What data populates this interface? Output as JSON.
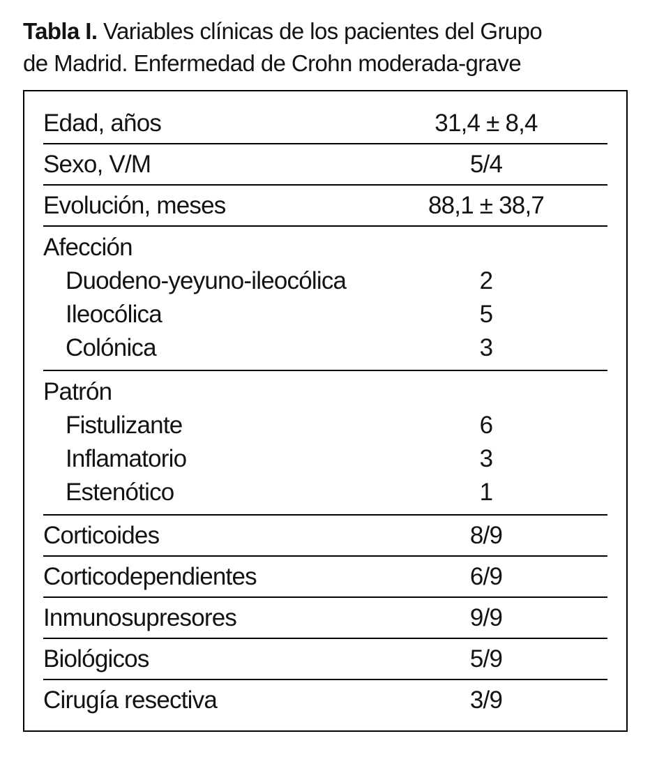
{
  "caption": {
    "label": "Tabla I.",
    "text": "Variables clínicas de los pacientes del Grupo\nde Madrid. Enfermedad de Crohn moderada-grave"
  },
  "colors": {
    "text": "#131313",
    "rule": "#000000",
    "background": "#ffffff"
  },
  "chart_data": {
    "type": "table",
    "title": "Tabla I. Variables clínicas de los pacientes del Grupo de Madrid. Enfermedad de Crohn moderada-grave",
    "rows": [
      {
        "label": "Edad, años",
        "value": "31,4 ± 8,4"
      },
      {
        "label": "Sexo, V/M",
        "value": "5/4"
      },
      {
        "label": "Evolución, meses",
        "value": "88,1 ± 38,7"
      },
      {
        "label": "Afección",
        "value": "",
        "items": [
          {
            "label": "Duodeno-yeyuno-ileocólica",
            "value": "2"
          },
          {
            "label": "Ileocólica",
            "value": "5"
          },
          {
            "label": "Colónica",
            "value": "3"
          }
        ]
      },
      {
        "label": "Patrón",
        "value": "",
        "items": [
          {
            "label": "Fistulizante",
            "value": "6"
          },
          {
            "label": "Inflamatorio",
            "value": "3"
          },
          {
            "label": "Estenótico",
            "value": "1"
          }
        ]
      },
      {
        "label": "Corticoides",
        "value": "8/9"
      },
      {
        "label": "Corticodependientes",
        "value": "6/9"
      },
      {
        "label": "Inmunosupresores",
        "value": "9/9"
      },
      {
        "label": "Biológicos",
        "value": "5/9"
      },
      {
        "label": "Cirugía resectiva",
        "value": "3/9"
      }
    ]
  },
  "table": {
    "rows": [
      {
        "label": "Edad, años",
        "value": "31,4 ± 8,4"
      },
      {
        "label": "Sexo, V/M",
        "value": "5/4"
      },
      {
        "label": "Evolución, meses",
        "value": "88,1 ± 38,7"
      },
      {
        "label": "Afección",
        "items": [
          {
            "label": "Duodeno-yeyuno-ileocólica",
            "value": "2"
          },
          {
            "label": "Ileocólica",
            "value": "5"
          },
          {
            "label": "Colónica",
            "value": "3"
          }
        ]
      },
      {
        "label": "Patrón",
        "items": [
          {
            "label": "Fistulizante",
            "value": "6"
          },
          {
            "label": "Inflamatorio",
            "value": "3"
          },
          {
            "label": "Estenótico",
            "value": "1"
          }
        ]
      },
      {
        "label": "Corticoides",
        "value": "8/9"
      },
      {
        "label": "Corticodependientes",
        "value": "6/9"
      },
      {
        "label": "Inmunosupresores",
        "value": "9/9"
      },
      {
        "label": "Biológicos",
        "value": "5/9"
      },
      {
        "label": "Cirugía resectiva",
        "value": "3/9"
      }
    ]
  }
}
